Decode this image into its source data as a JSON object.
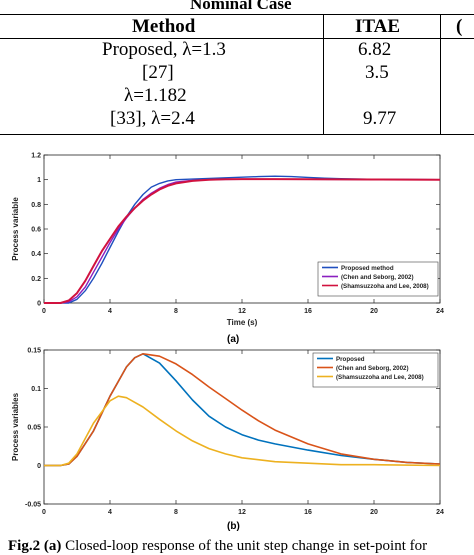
{
  "table": {
    "title": "Nominal Case",
    "headers": [
      "Method",
      "ITAE",
      "("
    ],
    "rows": [
      {
        "method": "Proposed, λ=1.3",
        "itae": "6.82"
      },
      {
        "method": "[27]",
        "itae": "3.5"
      },
      {
        "method": "λ=1.182",
        "itae": ""
      },
      {
        "method": "[33], λ=2.4",
        "itae": "9.77"
      }
    ]
  },
  "figures": {
    "a_label": "(a)",
    "b_label": "(b)",
    "caption_prefix": "Fig.2",
    "caption_part": "(a)",
    "caption_text": " Closed-loop response of the unit step change in set-point for"
  },
  "chart_data": [
    {
      "type": "line",
      "title": "",
      "xlabel": "Time (s)",
      "ylabel": "Process variable",
      "xlim": [
        0,
        24
      ],
      "ylim": [
        0,
        1.2
      ],
      "xticks": [
        0,
        4,
        8,
        12,
        16,
        20,
        24
      ],
      "yticks": [
        0,
        0.2,
        0.4,
        0.6,
        0.8,
        1,
        1.2
      ],
      "ytick_labels": [
        "0",
        "0.2",
        "0.4",
        "0.6",
        "0.8",
        "1",
        "1.2"
      ],
      "grid": false,
      "legend_position": "bottom-right",
      "series": [
        {
          "name": "Proposed method",
          "color": "#1f4fbf",
          "width": 1.4,
          "x": [
            0,
            1,
            1.5,
            2,
            2.5,
            3,
            3.5,
            4,
            4.5,
            5,
            5.5,
            6,
            6.5,
            7,
            7.5,
            8,
            9,
            10,
            11,
            12,
            13,
            14,
            15,
            16,
            17,
            18,
            20,
            22,
            24
          ],
          "y": [
            0,
            0,
            0,
            0.03,
            0.1,
            0.2,
            0.32,
            0.45,
            0.58,
            0.7,
            0.8,
            0.88,
            0.94,
            0.97,
            0.99,
            1.0,
            1.005,
            1.01,
            1.015,
            1.02,
            1.025,
            1.028,
            1.025,
            1.018,
            1.012,
            1.008,
            1.003,
            1.001,
            1.0
          ]
        },
        {
          "name": "(Chen and Seborg, 2002)",
          "color": "#8b1fc0",
          "width": 1.4,
          "x": [
            0,
            1,
            1.5,
            2,
            2.5,
            3,
            3.5,
            4,
            4.5,
            5,
            5.5,
            6,
            6.5,
            7,
            7.5,
            8,
            9,
            10,
            11,
            12,
            14,
            16,
            20,
            24
          ],
          "y": [
            0,
            0,
            0.01,
            0.05,
            0.13,
            0.25,
            0.37,
            0.49,
            0.6,
            0.69,
            0.77,
            0.84,
            0.89,
            0.93,
            0.96,
            0.98,
            0.995,
            1.0,
            1.002,
            1.003,
            1.004,
            1.003,
            1.001,
            1.0
          ]
        },
        {
          "name": "(Shamsuzzoha and Lee, 2008)",
          "color": "#d1123f",
          "width": 2.0,
          "x": [
            0,
            1,
            1.5,
            2,
            2.5,
            3,
            3.5,
            4,
            4.5,
            5,
            5.5,
            6,
            6.5,
            7,
            7.5,
            8,
            9,
            10,
            11,
            12,
            14,
            16,
            20,
            24
          ],
          "y": [
            0,
            0,
            0.02,
            0.08,
            0.18,
            0.3,
            0.42,
            0.52,
            0.62,
            0.7,
            0.77,
            0.83,
            0.88,
            0.92,
            0.95,
            0.97,
            0.99,
            1.0,
            1.003,
            1.005,
            1.005,
            1.003,
            1.001,
            1.0
          ]
        }
      ]
    },
    {
      "type": "line",
      "title": "",
      "xlabel": "",
      "ylabel": "Process variables",
      "xlim": [
        0,
        24
      ],
      "ylim": [
        -0.05,
        0.15
      ],
      "xticks": [
        0,
        4,
        8,
        12,
        16,
        20,
        24
      ],
      "yticks": [
        -0.05,
        0,
        0.05,
        0.1,
        0.15
      ],
      "ytick_labels": [
        "-0.05",
        "0",
        "0.05",
        "0.1",
        "0.15"
      ],
      "grid": false,
      "legend_position": "top-right",
      "series": [
        {
          "name": "Proposed",
          "color": "#0072bd",
          "width": 1.6,
          "x": [
            0,
            1,
            1.5,
            2,
            3,
            4,
            5,
            5.5,
            6,
            7,
            8,
            9,
            10,
            11,
            12,
            13,
            14,
            16,
            18,
            20,
            22,
            24
          ],
          "y": [
            0,
            0,
            0.002,
            0.012,
            0.045,
            0.09,
            0.128,
            0.14,
            0.145,
            0.133,
            0.11,
            0.085,
            0.064,
            0.05,
            0.04,
            0.033,
            0.028,
            0.02,
            0.013,
            0.008,
            0.004,
            0.002
          ]
        },
        {
          "name": "(Chen and Seborg, 2002)",
          "color": "#d95319",
          "width": 1.6,
          "x": [
            0,
            1,
            1.5,
            2,
            3,
            4,
            5,
            5.5,
            6,
            7,
            8,
            9,
            10,
            11,
            12,
            13,
            14,
            16,
            18,
            20,
            22,
            24
          ],
          "y": [
            0,
            0,
            0.002,
            0.012,
            0.045,
            0.09,
            0.128,
            0.14,
            0.145,
            0.142,
            0.132,
            0.118,
            0.102,
            0.087,
            0.072,
            0.058,
            0.046,
            0.028,
            0.015,
            0.008,
            0.004,
            0.002
          ]
        },
        {
          "name": "(Shamsuzzoha and Lee, 2008)",
          "color": "#edb120",
          "width": 1.6,
          "x": [
            0,
            1,
            1.5,
            2,
            3,
            4,
            4.5,
            5,
            6,
            7,
            8,
            9,
            10,
            11,
            12,
            14,
            16,
            18,
            20,
            24
          ],
          "y": [
            0,
            0,
            0.003,
            0.015,
            0.055,
            0.084,
            0.09,
            0.088,
            0.076,
            0.06,
            0.045,
            0.032,
            0.022,
            0.015,
            0.01,
            0.005,
            0.003,
            0.001,
            0.001,
            0
          ]
        }
      ]
    }
  ]
}
